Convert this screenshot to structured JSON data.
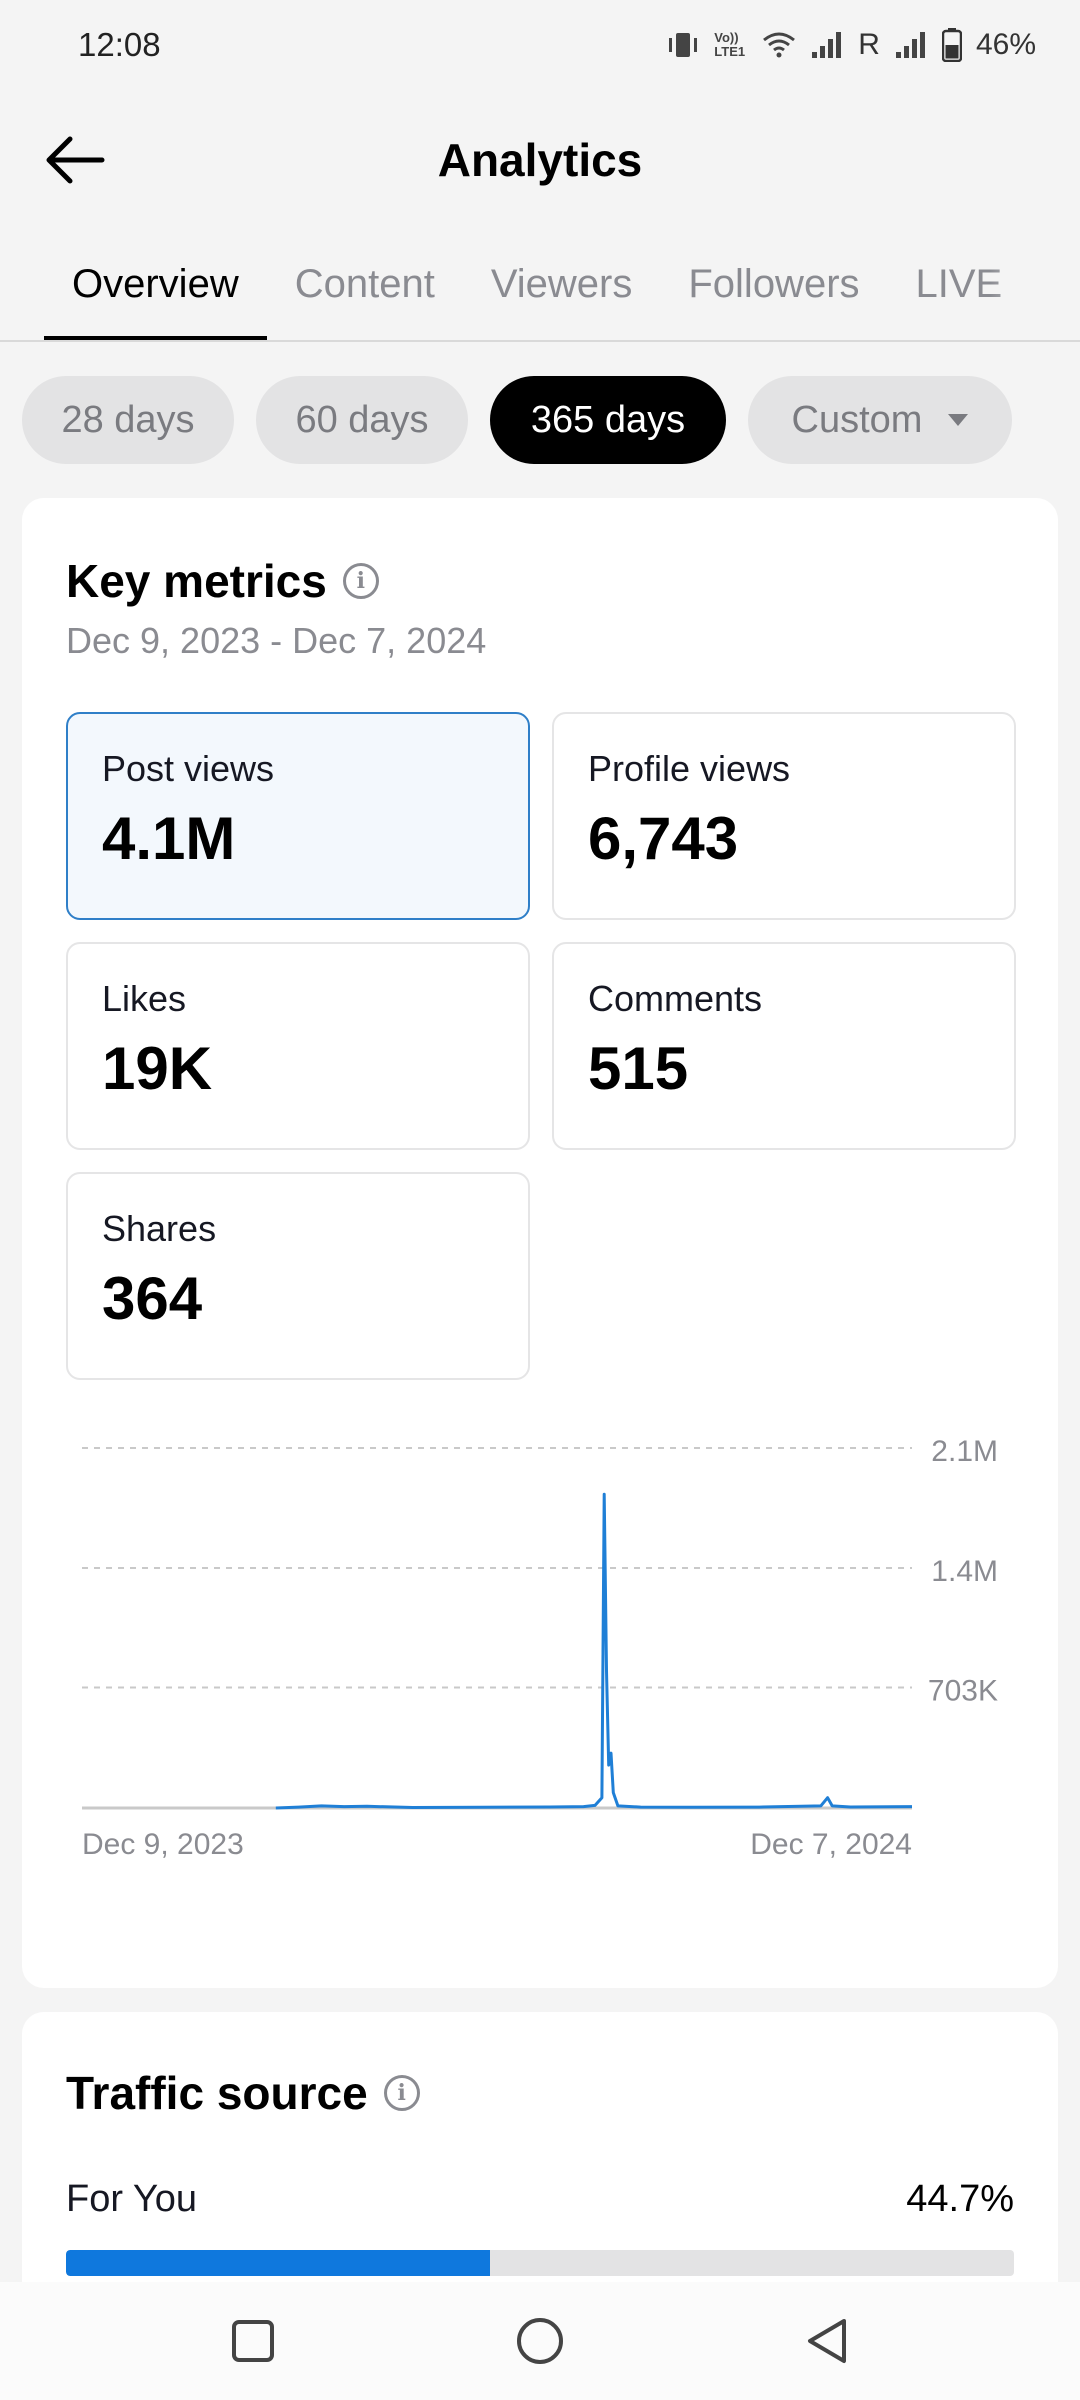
{
  "status_bar": {
    "time": "12:08",
    "roaming": "R",
    "battery": "46%",
    "volte": "Vo)) LTE1"
  },
  "header": {
    "title": "Analytics"
  },
  "tabs": [
    {
      "label": "Overview",
      "active": true
    },
    {
      "label": "Content",
      "active": false
    },
    {
      "label": "Viewers",
      "active": false
    },
    {
      "label": "Followers",
      "active": false
    },
    {
      "label": "LIVE",
      "active": false
    }
  ],
  "ranges": [
    {
      "label": "28 days",
      "active": false
    },
    {
      "label": "60 days",
      "active": false
    },
    {
      "label": "365 days",
      "active": true
    },
    {
      "label": "Custom",
      "active": false
    }
  ],
  "key_metrics": {
    "title": "Key metrics",
    "date_range": "Dec 9, 2023 - Dec 7, 2024",
    "metrics": [
      {
        "label": "Post views",
        "value": "4.1M",
        "selected": true
      },
      {
        "label": "Profile views",
        "value": "6,743",
        "selected": false
      },
      {
        "label": "Likes",
        "value": "19K",
        "selected": false
      },
      {
        "label": "Comments",
        "value": "515",
        "selected": false
      },
      {
        "label": "Shares",
        "value": "364",
        "selected": false
      }
    ]
  },
  "chart_data": {
    "type": "line",
    "title": "",
    "xlabel": "",
    "ylabel": "",
    "x_start_label": "Dec 9, 2023",
    "x_end_label": "Dec 7, 2024",
    "y_tick_labels": [
      "2.1M",
      "1.4M",
      "703K"
    ],
    "y_ticks": [
      2100000,
      1400000,
      703000
    ],
    "ylim": [
      0,
      2100000
    ],
    "grid": true,
    "line_color": "#1f7fd6",
    "series": [
      {
        "name": "",
        "x": [
          "2024-03-03",
          "2024-03-13",
          "2024-03-23",
          "2024-04-02",
          "2024-04-12",
          "2024-05-02",
          "2024-06-01",
          "2024-07-01",
          "2024-07-16",
          "2024-07-21",
          "2024-07-24",
          "2024-07-25",
          "2024-07-26",
          "2024-07-27",
          "2024-07-28",
          "2024-07-29",
          "2024-07-31",
          "2024-08-10",
          "2024-09-01",
          "2024-10-01",
          "2024-10-28",
          "2024-10-31",
          "2024-11-02",
          "2024-11-10",
          "2024-12-07"
        ],
        "y": [
          0,
          5000,
          12000,
          8000,
          10000,
          3000,
          4000,
          6000,
          8000,
          15000,
          60000,
          1830000,
          800000,
          250000,
          320000,
          90000,
          12000,
          5000,
          4000,
          5000,
          12000,
          60000,
          12000,
          6000,
          8000
        ]
      }
    ]
  },
  "traffic_source": {
    "title": "Traffic source",
    "items": [
      {
        "label": "For You",
        "percent_label": "44.7%",
        "percent": 44.7
      }
    ]
  },
  "colors": {
    "accent": "#0f78dd",
    "selected_border": "#2f7fc8",
    "selected_bg": "#f3f8fd"
  },
  "icons": {
    "back": "arrow-left-icon",
    "info": "info-circle-icon",
    "nav_recent": "square-icon",
    "nav_home": "circle-icon",
    "nav_back": "triangle-back-icon"
  }
}
